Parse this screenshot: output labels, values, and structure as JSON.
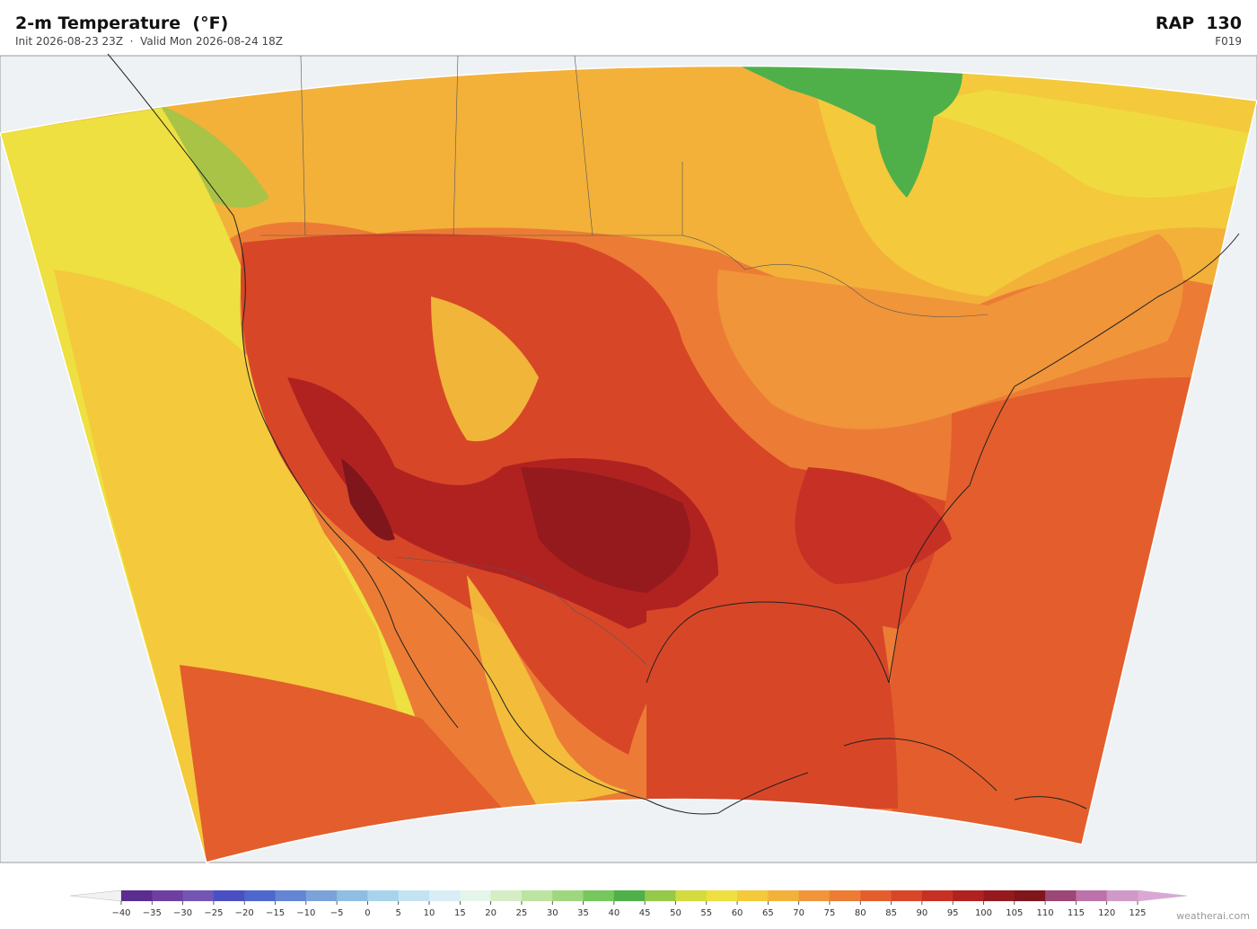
{
  "header": {
    "title": "2-m Temperature  (°F)",
    "subtitle": "Init 2026-08-23 23Z  ·  Valid Mon 2026-08-24 18Z",
    "model": "RAP  130",
    "forecast_hour": "F019"
  },
  "colorbar": {
    "ticks": [
      {
        "value": -40,
        "label": "−40"
      },
      {
        "value": -35,
        "label": "−35"
      },
      {
        "value": -30,
        "label": "−30"
      },
      {
        "value": -25,
        "label": "−25"
      },
      {
        "value": -20,
        "label": "−20"
      },
      {
        "value": -15,
        "label": "−15"
      },
      {
        "value": -10,
        "label": "−10"
      },
      {
        "value": -5,
        "label": "−5"
      },
      0,
      5,
      10,
      15,
      20,
      25,
      30,
      35,
      40,
      45,
      50,
      55,
      60,
      65,
      70,
      75,
      80,
      85,
      90,
      95,
      100,
      105,
      110,
      115,
      120,
      125
    ],
    "colors": [
      "#5a2d91",
      "#6e3fa0",
      "#7355b5",
      "#4a4fc4",
      "#4d67cc",
      "#6484d4",
      "#7ba3da",
      "#90bde2",
      "#a9d3ec",
      "#c3e3f2",
      "#d8eef4",
      "#e5f5ea",
      "#d5eec6",
      "#bde3a0",
      "#9fd77e",
      "#77c65e",
      "#4fb04a",
      "#96c84a",
      "#d2dc3e",
      "#ede040",
      "#f4c93c",
      "#f3b13a",
      "#f0953a",
      "#ec7c35",
      "#e35e2c",
      "#d84628",
      "#c73024",
      "#b02220",
      "#951a1d",
      "#7e161b",
      "#9c4776",
      "#bd72aa",
      "#d09ac8"
    ],
    "under_color": "#f2f2f2",
    "over_color": "#dda6d6"
  },
  "footer": "weatherai.com"
}
